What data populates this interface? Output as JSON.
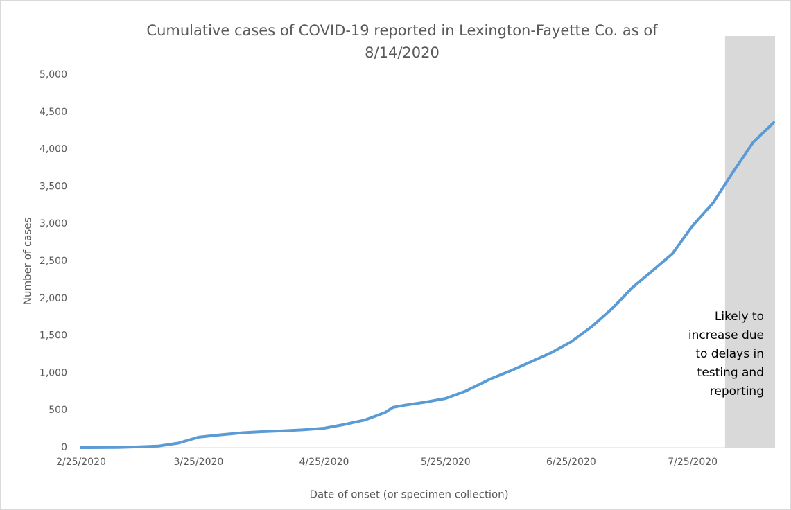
{
  "chart_data": {
    "type": "line",
    "title": [
      "Cumulative cases of COVID-19 reported in Lexington-Fayette Co.  as of",
      "8/14/2020"
    ],
    "x_label": "Date of onset (or specimen collection)",
    "y_label": "Number of cases",
    "x": [
      "2/25/2020",
      "3/5/2020",
      "3/10/2020",
      "3/15/2020",
      "3/20/2020",
      "3/25/2020",
      "3/30/2020",
      "4/5/2020",
      "4/10/2020",
      "4/15/2020",
      "4/20/2020",
      "4/25/2020",
      "4/30/2020",
      "5/5/2020",
      "5/10/2020",
      "5/12/2020",
      "5/15/2020",
      "5/20/2020",
      "5/25/2020",
      "5/30/2020",
      "6/5/2020",
      "6/10/2020",
      "6/15/2020",
      "6/20/2020",
      "6/25/2020",
      "6/30/2020",
      "7/5/2020",
      "7/10/2020",
      "7/15/2020",
      "7/20/2020",
      "7/25/2020",
      "7/30/2020",
      "8/4/2020",
      "8/9/2020",
      "8/14/2020"
    ],
    "series": [
      {
        "name": "Cumulative cases",
        "color": "#5b9bd5",
        "values": [
          0,
          2,
          10,
          20,
          60,
          140,
          170,
          200,
          215,
          225,
          240,
          260,
          310,
          370,
          470,
          540,
          570,
          610,
          660,
          760,
          920,
          1030,
          1150,
          1270,
          1420,
          1620,
          1860,
          2140,
          2370,
          2600,
          2980,
          3280,
          3700,
          4100,
          4360
        ]
      }
    ],
    "xlim": [
      "2/25/2020",
      "8/14/2020"
    ],
    "xticks": [
      "2/25/2020",
      "3/25/2020",
      "4/25/2020",
      "5/25/2020",
      "6/25/2020",
      "7/25/2020"
    ],
    "ylim": [
      0,
      5000
    ],
    "yticks": [
      0,
      500,
      {
        "value": 1000,
        "label": "1,000"
      },
      {
        "value": 1500,
        "label": "1,500"
      },
      {
        "value": 2000,
        "label": "2,000"
      },
      {
        "value": 2500,
        "label": "2,500"
      },
      {
        "value": 3000,
        "label": "3,000"
      },
      {
        "value": 3500,
        "label": "3,500"
      },
      {
        "value": 4000,
        "label": "4,000"
      },
      {
        "value": 4500,
        "label": "4,500"
      },
      {
        "value": 5000,
        "label": "5,000"
      }
    ],
    "grid": false,
    "shaded_region": {
      "x": [
        "8/2/2020",
        "8/14/2020"
      ],
      "color": "#d9d9d9"
    },
    "annotation": [
      "Likely to",
      "increase due",
      "to delays in",
      "testing and",
      "reporting"
    ]
  }
}
